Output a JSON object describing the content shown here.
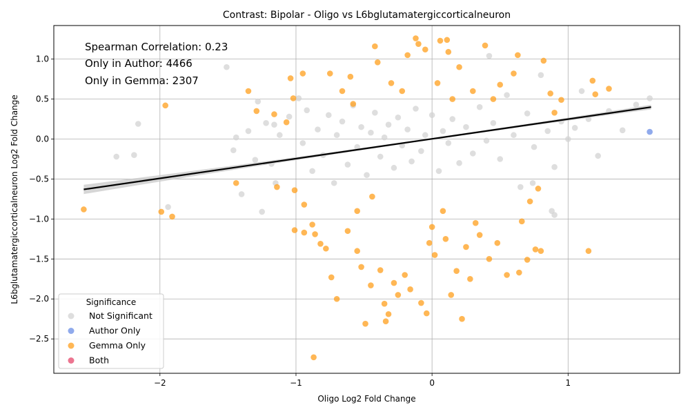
{
  "chart_data": {
    "type": "scatter",
    "title": "Contrast: Bipolar - Oligo vs L6bglutamatergiccorticalneuron",
    "xlabel": "Oligo Log2 Fold Change",
    "ylabel": "L6bglutamatergiccorticalneuron Log2 Fold Change",
    "xlim": [
      -2.78,
      1.82
    ],
    "ylim": [
      -2.93,
      1.42
    ],
    "xticks": [
      -2,
      -1,
      0,
      1
    ],
    "xtick_labels": [
      "−2",
      "−1",
      "0",
      "1"
    ],
    "yticks": [
      -2.5,
      -2.0,
      -1.5,
      -1.0,
      -0.5,
      0.0,
      0.5,
      1.0
    ],
    "ytick_labels": [
      "−2.5",
      "−2.0",
      "−1.5",
      "−1.0",
      "−0.5",
      "0.0",
      "0.5",
      "1.0"
    ],
    "grid": true,
    "annotations": [
      "Spearman Correlation: 0.23",
      "Only in Author: 4466",
      "Only in Gemma: 2307"
    ],
    "legend": {
      "title": "Significance",
      "position": "lower-left",
      "entries": [
        {
          "label": "Not Significant",
          "color": "#d3d3d3"
        },
        {
          "label": "Author Only",
          "color": "#6b8ee6"
        },
        {
          "label": "Gemma Only",
          "color": "#ff9f1c"
        },
        {
          "label": "Both",
          "color": "#e5476b"
        }
      ]
    },
    "regression": {
      "x": [
        -2.56,
        1.61
      ],
      "y": [
        -0.63,
        0.4
      ],
      "color": "#000000"
    },
    "series": [
      {
        "name": "Not Significant",
        "color": "#d3d3d3",
        "points": [
          [
            -1.51,
            0.9
          ],
          [
            -2.16,
            0.19
          ],
          [
            -2.19,
            -0.2
          ],
          [
            -2.32,
            -0.22
          ],
          [
            -1.94,
            -0.85
          ],
          [
            -1.44,
            0.02
          ],
          [
            -1.4,
            -0.69
          ],
          [
            -1.46,
            -0.14
          ],
          [
            -1.35,
            0.1
          ],
          [
            -1.3,
            -0.26
          ],
          [
            -1.28,
            0.47
          ],
          [
            -1.22,
            0.2
          ],
          [
            -1.18,
            -0.31
          ],
          [
            -1.16,
            0.18
          ],
          [
            -1.12,
            0.05
          ],
          [
            -1.05,
            0.28
          ],
          [
            -0.98,
            0.51
          ],
          [
            -0.95,
            -0.05
          ],
          [
            -0.92,
            0.36
          ],
          [
            -0.88,
            -0.4
          ],
          [
            -0.84,
            0.12
          ],
          [
            -0.8,
            -0.2
          ],
          [
            -0.76,
            0.3
          ],
          [
            -0.72,
            -0.55
          ],
          [
            -0.7,
            0.05
          ],
          [
            -0.66,
            0.22
          ],
          [
            -0.62,
            -0.32
          ],
          [
            -0.58,
            0.42
          ],
          [
            -0.55,
            -0.1
          ],
          [
            -0.52,
            0.15
          ],
          [
            -0.48,
            -0.45
          ],
          [
            -0.45,
            0.08
          ],
          [
            -0.42,
            0.33
          ],
          [
            -0.38,
            -0.22
          ],
          [
            -0.35,
            0.02
          ],
          [
            -0.32,
            0.18
          ],
          [
            -0.28,
            -0.36
          ],
          [
            -0.25,
            0.27
          ],
          [
            -0.22,
            -0.08
          ],
          [
            -0.18,
            0.12
          ],
          [
            -0.15,
            -0.28
          ],
          [
            -0.12,
            0.38
          ],
          [
            -0.08,
            -0.15
          ],
          [
            -0.05,
            0.05
          ],
          [
            0.0,
            0.3
          ],
          [
            0.05,
            -0.4
          ],
          [
            0.08,
            0.1
          ],
          [
            0.12,
            -0.05
          ],
          [
            0.15,
            0.25
          ],
          [
            0.2,
            -0.3
          ],
          [
            0.25,
            0.15
          ],
          [
            0.3,
            -0.18
          ],
          [
            0.35,
            0.4
          ],
          [
            0.4,
            -0.02
          ],
          [
            0.45,
            0.2
          ],
          [
            0.5,
            -0.25
          ],
          [
            0.55,
            0.55
          ],
          [
            0.6,
            0.05
          ],
          [
            0.65,
            -0.6
          ],
          [
            0.7,
            0.32
          ],
          [
            0.75,
            -0.1
          ],
          [
            0.8,
            0.8
          ],
          [
            0.85,
            0.1
          ],
          [
            0.9,
            -0.35
          ],
          [
            0.95,
            0.22
          ],
          [
            1.0,
            0.0
          ],
          [
            1.05,
            0.14
          ],
          [
            1.1,
            0.6
          ],
          [
            1.15,
            0.25
          ],
          [
            1.22,
            -0.21
          ],
          [
            1.3,
            0.35
          ],
          [
            1.4,
            0.11
          ],
          [
            1.5,
            0.43
          ],
          [
            1.6,
            0.51
          ],
          [
            0.88,
            -0.9
          ],
          [
            0.9,
            -0.95
          ],
          [
            0.74,
            -0.55
          ],
          [
            -1.15,
            -0.55
          ],
          [
            -1.25,
            -0.91
          ],
          [
            0.42,
            1.04
          ]
        ]
      },
      {
        "name": "Author Only",
        "color": "#6b8ee6",
        "points": [
          [
            1.6,
            0.09
          ]
        ]
      },
      {
        "name": "Gemma Only",
        "color": "#ff9f1c",
        "points": [
          [
            -2.56,
            -0.88
          ],
          [
            -1.96,
            0.42
          ],
          [
            -1.99,
            -0.91
          ],
          [
            -1.91,
            -0.97
          ],
          [
            -1.44,
            -0.55
          ],
          [
            -1.35,
            0.6
          ],
          [
            -1.29,
            0.35
          ],
          [
            -1.16,
            0.31
          ],
          [
            -1.14,
            -0.6
          ],
          [
            -1.07,
            0.21
          ],
          [
            -1.04,
            0.76
          ],
          [
            -1.02,
            0.51
          ],
          [
            -1.01,
            -0.64
          ],
          [
            -1.01,
            -1.14
          ],
          [
            -0.95,
            0.82
          ],
          [
            -0.94,
            -0.82
          ],
          [
            -0.94,
            -1.17
          ],
          [
            -0.88,
            -1.07
          ],
          [
            -0.87,
            -2.73
          ],
          [
            -0.86,
            -1.19
          ],
          [
            -0.82,
            -1.31
          ],
          [
            -0.78,
            -1.37
          ],
          [
            -0.75,
            0.82
          ],
          [
            -0.74,
            -1.73
          ],
          [
            -0.7,
            -2.0
          ],
          [
            -0.66,
            0.6
          ],
          [
            -0.62,
            -1.15
          ],
          [
            -0.58,
            0.44
          ],
          [
            -0.55,
            -1.4
          ],
          [
            -0.52,
            -1.6
          ],
          [
            -0.49,
            -2.31
          ],
          [
            -0.45,
            -1.83
          ],
          [
            -0.42,
            1.16
          ],
          [
            -0.4,
            0.96
          ],
          [
            -0.38,
            -1.64
          ],
          [
            -0.35,
            -2.06
          ],
          [
            -0.34,
            -2.28
          ],
          [
            -0.32,
            -2.19
          ],
          [
            -0.3,
            0.7
          ],
          [
            -0.28,
            -1.8
          ],
          [
            -0.25,
            -1.95
          ],
          [
            -0.22,
            0.6
          ],
          [
            -0.2,
            -1.7
          ],
          [
            -0.18,
            1.05
          ],
          [
            -0.16,
            -1.88
          ],
          [
            -0.12,
            1.26
          ],
          [
            -0.1,
            1.19
          ],
          [
            -0.08,
            -2.05
          ],
          [
            -0.05,
            1.12
          ],
          [
            -0.04,
            -2.18
          ],
          [
            -0.02,
            -1.3
          ],
          [
            0.0,
            -1.1
          ],
          [
            0.02,
            -1.45
          ],
          [
            0.04,
            0.7
          ],
          [
            0.06,
            1.23
          ],
          [
            0.08,
            -0.9
          ],
          [
            0.1,
            -1.25
          ],
          [
            0.11,
            1.24
          ],
          [
            0.12,
            1.09
          ],
          [
            0.14,
            -1.95
          ],
          [
            0.15,
            0.5
          ],
          [
            0.18,
            -1.65
          ],
          [
            0.2,
            0.9
          ],
          [
            0.22,
            -2.25
          ],
          [
            0.25,
            -1.35
          ],
          [
            0.28,
            -1.75
          ],
          [
            0.3,
            0.6
          ],
          [
            0.32,
            -1.05
          ],
          [
            0.35,
            -1.2
          ],
          [
            0.39,
            1.17
          ],
          [
            0.42,
            -1.5
          ],
          [
            0.45,
            0.5
          ],
          [
            0.48,
            -1.3
          ],
          [
            0.5,
            0.68
          ],
          [
            0.55,
            -1.7
          ],
          [
            0.6,
            0.82
          ],
          [
            0.63,
            1.05
          ],
          [
            0.64,
            -1.67
          ],
          [
            0.66,
            -1.03
          ],
          [
            0.7,
            -1.51
          ],
          [
            0.72,
            -0.78
          ],
          [
            0.76,
            -1.38
          ],
          [
            0.8,
            -1.4
          ],
          [
            0.82,
            0.98
          ],
          [
            0.87,
            0.57
          ],
          [
            0.9,
            0.33
          ],
          [
            0.95,
            0.49
          ],
          [
            1.15,
            -1.4
          ],
          [
            1.18,
            0.73
          ],
          [
            1.3,
            0.63
          ],
          [
            1.2,
            0.56
          ],
          [
            0.78,
            -0.62
          ],
          [
            -0.6,
            0.78
          ],
          [
            -0.44,
            -0.72
          ],
          [
            -0.55,
            -0.9
          ]
        ]
      },
      {
        "name": "Both",
        "color": "#e5476b",
        "points": []
      }
    ]
  }
}
